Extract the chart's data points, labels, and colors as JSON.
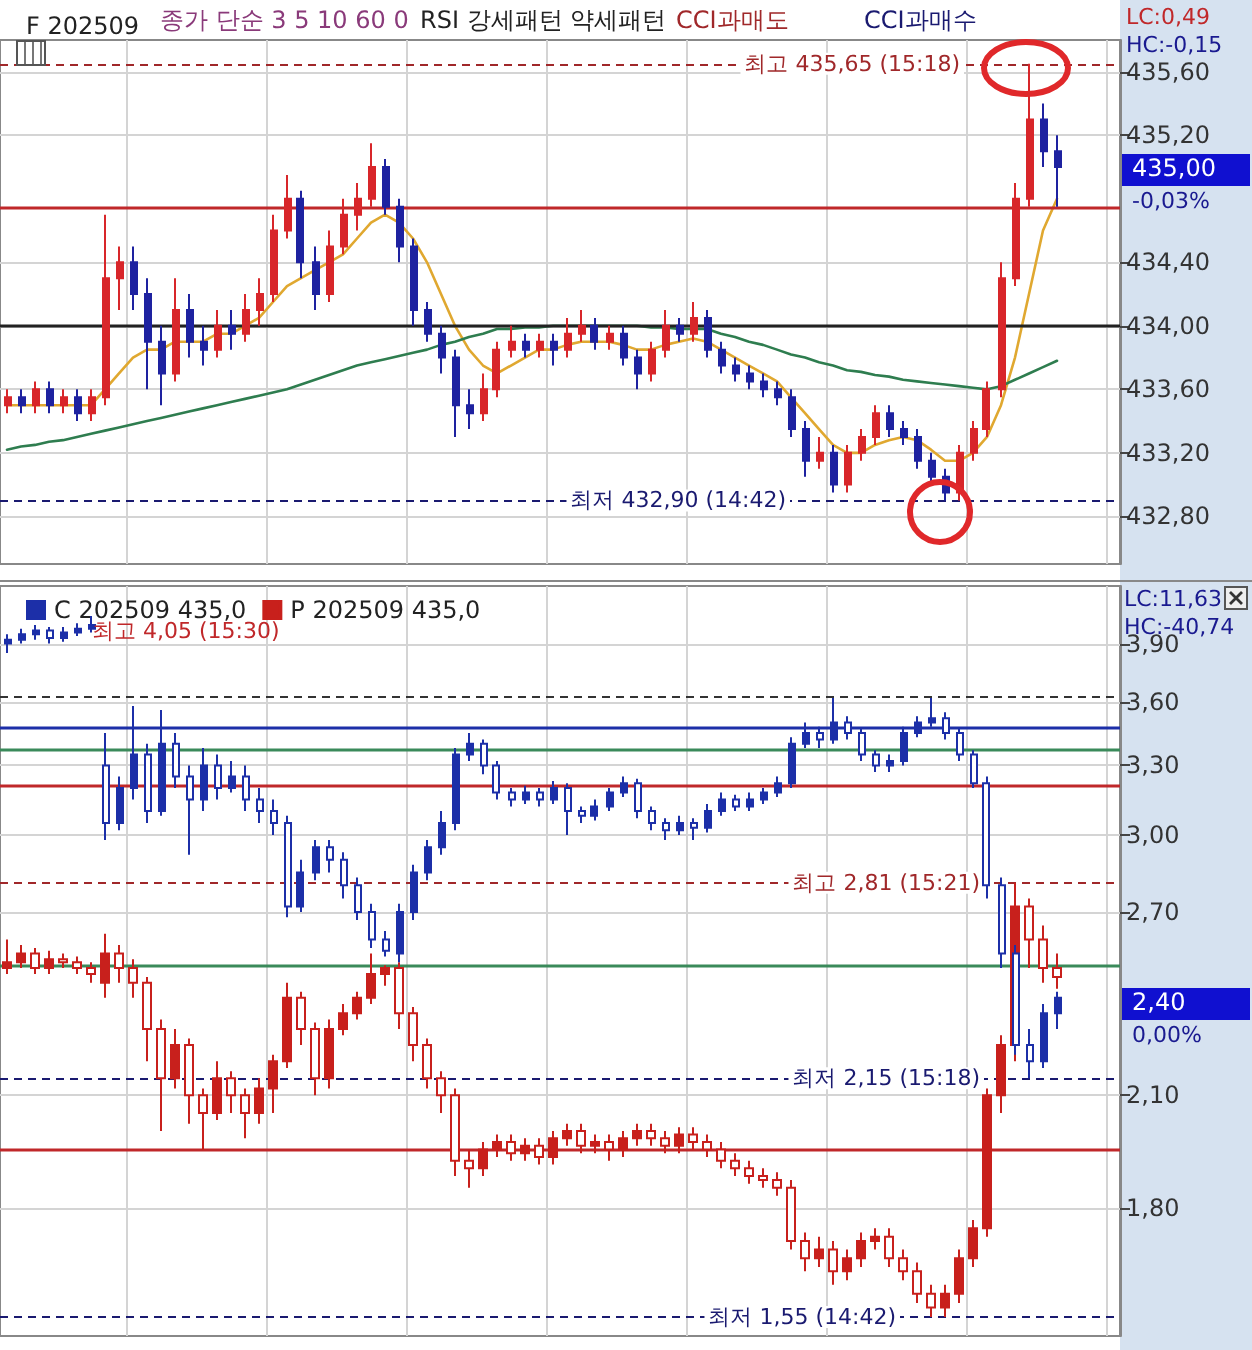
{
  "chart_data": [
    {
      "type": "candlestick",
      "title": "F 202509",
      "annotations": [
        "종가 단순 3 5 10 60 0",
        "RSI 강세패턴 약세패턴",
        "CCI과매도",
        "CCI과매수",
        "LC:0,49",
        "HC:-0,15",
        "435,00",
        "-0,03%"
      ],
      "categories": [
        null,
        null,
        null,
        null,
        null,
        null,
        null,
        null,
        null,
        null,
        null,
        null,
        null,
        null,
        null,
        null,
        null,
        null,
        null,
        null,
        null,
        null,
        null,
        null,
        null,
        null,
        null,
        null,
        null,
        null,
        null,
        null,
        null,
        null,
        null,
        null,
        null,
        null,
        null,
        null,
        null,
        null,
        null,
        null,
        null,
        null,
        null,
        null,
        null,
        null,
        null,
        null,
        null,
        null,
        null,
        null,
        null,
        null,
        null,
        null,
        null,
        null,
        null,
        null,
        null,
        null,
        null,
        null,
        null,
        null,
        null,
        null,
        null,
        null,
        null,
        null,
        null,
        null,
        null,
        null
      ],
      "series": [
        {
          "ohlc": [
            [
              433.5,
              433.6,
              433.45,
              433.55
            ],
            [
              433.55,
              433.6,
              433.45,
              433.5
            ],
            [
              433.5,
              433.65,
              433.45,
              433.6
            ],
            [
              433.6,
              433.65,
              433.45,
              433.5
            ],
            [
              433.5,
              433.6,
              433.45,
              433.55
            ],
            [
              433.55,
              433.6,
              433.4,
              433.45
            ],
            [
              433.45,
              433.6,
              433.4,
              433.55
            ],
            [
              433.55,
              434.7,
              433.5,
              434.3
            ],
            [
              434.3,
              434.5,
              434.1,
              434.4
            ],
            [
              434.4,
              434.5,
              434.1,
              434.2
            ],
            [
              434.2,
              434.3,
              433.6,
              433.9
            ],
            [
              433.9,
              434.0,
              433.5,
              433.7
            ],
            [
              433.7,
              434.3,
              433.65,
              434.1
            ],
            [
              434.1,
              434.2,
              433.8,
              433.9
            ],
            [
              433.9,
              434.0,
              433.75,
              433.85
            ],
            [
              433.85,
              434.1,
              433.8,
              434.0
            ],
            [
              434.0,
              434.1,
              433.85,
              433.95
            ],
            [
              433.95,
              434.2,
              433.9,
              434.1
            ],
            [
              434.1,
              434.3,
              434.0,
              434.2
            ],
            [
              434.2,
              434.7,
              434.15,
              434.6
            ],
            [
              434.6,
              434.95,
              434.55,
              434.8
            ],
            [
              434.8,
              434.85,
              434.3,
              434.4
            ],
            [
              434.4,
              434.5,
              434.1,
              434.2
            ],
            [
              434.2,
              434.6,
              434.15,
              434.5
            ],
            [
              434.5,
              434.8,
              434.45,
              434.7
            ],
            [
              434.7,
              434.9,
              434.6,
              434.8
            ],
            [
              434.8,
              435.15,
              434.75,
              435.0
            ],
            [
              435.0,
              435.05,
              434.7,
              434.75
            ],
            [
              434.75,
              434.8,
              434.4,
              434.5
            ],
            [
              434.5,
              434.55,
              434.0,
              434.1
            ],
            [
              434.1,
              434.15,
              433.9,
              433.95
            ],
            [
              433.95,
              434.0,
              433.7,
              433.8
            ],
            [
              433.8,
              433.85,
              433.3,
              433.5
            ],
            [
              433.5,
              433.6,
              433.35,
              433.45
            ],
            [
              433.45,
              433.7,
              433.4,
              433.6
            ],
            [
              433.6,
              433.9,
              433.55,
              433.85
            ],
            [
              433.85,
              434.0,
              433.8,
              433.9
            ],
            [
              433.9,
              433.95,
              433.8,
              433.85
            ],
            [
              433.85,
              433.95,
              433.8,
              433.9
            ],
            [
              433.9,
              433.95,
              433.75,
              433.85
            ],
            [
              433.85,
              434.05,
              433.8,
              433.95
            ],
            [
              433.95,
              434.1,
              433.9,
              434.0
            ],
            [
              434.0,
              434.05,
              433.85,
              433.9
            ],
            [
              433.9,
              434.0,
              433.85,
              433.95
            ],
            [
              433.95,
              434.0,
              433.75,
              433.8
            ],
            [
              433.8,
              433.85,
              433.6,
              433.7
            ],
            [
              433.7,
              433.9,
              433.65,
              433.85
            ],
            [
              433.85,
              434.1,
              433.8,
              434.0
            ],
            [
              434.0,
              434.05,
              433.9,
              433.95
            ],
            [
              433.95,
              434.15,
              433.9,
              434.05
            ],
            [
              434.05,
              434.1,
              433.8,
              433.85
            ],
            [
              433.85,
              433.9,
              433.7,
              433.75
            ],
            [
              433.75,
              433.8,
              433.65,
              433.7
            ],
            [
              433.7,
              433.75,
              433.6,
              433.65
            ],
            [
              433.65,
              433.7,
              433.55,
              433.6
            ],
            [
              433.6,
              433.65,
              433.5,
              433.55
            ],
            [
              433.55,
              433.6,
              433.3,
              433.35
            ],
            [
              433.35,
              433.4,
              433.05,
              433.15
            ],
            [
              433.15,
              433.3,
              433.1,
              433.2
            ],
            [
              433.2,
              433.25,
              432.95,
              433.0
            ],
            [
              433.0,
              433.25,
              432.95,
              433.2
            ],
            [
              433.2,
              433.35,
              433.15,
              433.3
            ],
            [
              433.3,
              433.5,
              433.25,
              433.45
            ],
            [
              433.45,
              433.5,
              433.3,
              433.35
            ],
            [
              433.35,
              433.4,
              433.25,
              433.3
            ],
            [
              433.3,
              433.35,
              433.1,
              433.15
            ],
            [
              433.15,
              433.2,
              433.0,
              433.05
            ],
            [
              433.05,
              433.1,
              432.9,
              432.95
            ],
            [
              432.95,
              433.25,
              432.9,
              433.2
            ],
            [
              433.2,
              433.4,
              433.15,
              433.35
            ],
            [
              433.35,
              433.65,
              433.3,
              433.6
            ],
            [
              433.6,
              434.4,
              433.55,
              434.3
            ],
            [
              434.3,
              434.9,
              434.25,
              434.8
            ],
            [
              434.8,
              435.65,
              434.75,
              435.3
            ],
            [
              435.3,
              435.4,
              435.0,
              435.1
            ],
            [
              435.1,
              435.2,
              434.75,
              435.0
            ],
            null,
            null,
            null,
            null
          ],
          "colors": [
            "#d8262a",
            "#1e22a0",
            "#d8262a",
            "#1e22a0",
            "#d8262a",
            "#1e22a0",
            "#d8262a",
            "#d8262a",
            "#d8262a",
            "#1e22a0",
            "#1e22a0",
            "#1e22a0",
            "#d8262a",
            "#1e22a0",
            "#1e22a0",
            "#d8262a",
            "#1e22a0",
            "#d8262a",
            "#d8262a",
            "#d8262a",
            "#d8262a",
            "#1e22a0",
            "#1e22a0",
            "#d8262a",
            "#d8262a",
            "#d8262a",
            "#d8262a",
            "#1e22a0",
            "#1e22a0",
            "#1e22a0",
            "#1e22a0",
            "#1e22a0",
            "#1e22a0",
            "#1e22a0",
            "#d8262a",
            "#d8262a",
            "#d8262a",
            "#1e22a0",
            "#d8262a",
            "#1e22a0",
            "#d8262a",
            "#d8262a",
            "#1e22a0",
            "#d8262a",
            "#1e22a0",
            "#1e22a0",
            "#d8262a",
            "#d8262a",
            "#1e22a0",
            "#d8262a",
            "#1e22a0",
            "#1e22a0",
            "#1e22a0",
            "#1e22a0",
            "#1e22a0",
            "#1e22a0",
            "#1e22a0",
            "#1e22a0",
            "#d8262a",
            "#1e22a0",
            "#d8262a",
            "#d8262a",
            "#d8262a",
            "#1e22a0",
            "#1e22a0",
            "#1e22a0",
            "#1e22a0",
            "#1e22a0",
            "#d8262a",
            "#d8262a",
            "#d8262a",
            "#d8262a",
            "#d8262a",
            "#d8262a",
            "#1e22a0",
            "#1e22a0",
            null,
            null,
            null,
            null
          ]
        },
        {
          "type": "line",
          "color": "#e0a830",
          "values": [
            433.5,
            433.5,
            433.5,
            433.5,
            433.5,
            433.5,
            433.5,
            433.6,
            433.7,
            433.8,
            433.85,
            433.85,
            433.9,
            433.9,
            433.9,
            433.95,
            433.95,
            434.0,
            434.05,
            434.15,
            434.25,
            434.3,
            434.35,
            434.4,
            434.45,
            434.55,
            434.65,
            434.7,
            434.65,
            434.55,
            434.4,
            434.2,
            434.0,
            433.85,
            433.75,
            433.7,
            433.75,
            433.8,
            433.85,
            433.85,
            433.88,
            433.9,
            433.9,
            433.9,
            433.88,
            433.85,
            433.85,
            433.88,
            433.9,
            433.92,
            433.9,
            433.85,
            433.8,
            433.75,
            433.7,
            433.65,
            433.55,
            433.45,
            433.35,
            433.25,
            433.2,
            433.2,
            433.25,
            433.28,
            433.3,
            433.28,
            433.22,
            433.15,
            433.15,
            433.2,
            433.3,
            433.5,
            433.8,
            434.2,
            434.6,
            434.8,
            null,
            null,
            null,
            null
          ]
        },
        {
          "type": "line",
          "color": "#2e7d4f",
          "values": [
            433.22,
            433.24,
            433.25,
            433.27,
            433.28,
            433.3,
            433.32,
            433.34,
            433.36,
            433.38,
            433.4,
            433.42,
            433.44,
            433.46,
            433.48,
            433.5,
            433.52,
            433.54,
            433.56,
            433.58,
            433.6,
            433.63,
            433.66,
            433.69,
            433.72,
            433.75,
            433.77,
            433.79,
            433.81,
            433.83,
            433.85,
            433.88,
            433.9,
            433.93,
            433.95,
            433.98,
            433.98,
            433.99,
            433.99,
            434.0,
            434.0,
            434.0,
            434.0,
            434.0,
            434.0,
            434.0,
            433.99,
            433.99,
            433.98,
            433.98,
            433.98,
            433.95,
            433.93,
            433.9,
            433.88,
            433.85,
            433.82,
            433.8,
            433.77,
            433.75,
            433.72,
            433.71,
            433.69,
            433.68,
            433.66,
            433.65,
            433.64,
            433.63,
            433.62,
            433.61,
            433.6,
            433.62,
            433.66,
            433.7,
            433.74,
            433.78,
            null,
            null,
            null,
            null
          ]
        }
      ],
      "ylim": [
        432.5,
        435.8
      ],
      "yticks": [
        {
          "value": 432.8,
          "label": "432,80"
        },
        {
          "value": 433.2,
          "label": "433,20"
        },
        {
          "value": 433.6,
          "label": "433,60"
        },
        {
          "value": 434.0,
          "label": "434,00"
        },
        {
          "value": 434.4,
          "label": "434,40"
        },
        {
          "value": 435.2,
          "label": "435,20"
        },
        {
          "value": 435.6,
          "label": "435,60"
        }
      ],
      "grid": true,
      "legend": false,
      "marker": "none",
      "ref_lines": [
        {
          "axis": "y",
          "value": 435.65,
          "label": "최고 435,65 (15:18)",
          "color": "#a0282a",
          "line_style": "dashed"
        },
        {
          "axis": "y",
          "value": 434.74,
          "color": "#c0282a",
          "line_style": "solid"
        },
        {
          "axis": "y",
          "value": 434.0,
          "color": "#222222",
          "line_style": "solid"
        },
        {
          "axis": "y",
          "value": 432.9,
          "label": "최저 432,90 (14:42)",
          "color": "#1a1a70",
          "line_style": "dashed"
        }
      ]
    },
    {
      "type": "candlestick",
      "log": "y",
      "annotations": [
        "LC:11,63",
        "HC:-40,74",
        "최고 4,05 (15:30)",
        "2,40",
        "0,00%"
      ],
      "categories": [
        null,
        null,
        null,
        null,
        null,
        null,
        null,
        null,
        null,
        null,
        null,
        null,
        null,
        null,
        null,
        null,
        null,
        null,
        null,
        null,
        null,
        null,
        null,
        null,
        null,
        null,
        null,
        null,
        null,
        null,
        null,
        null,
        null,
        null,
        null,
        null,
        null,
        null,
        null,
        null,
        null,
        null,
        null,
        null,
        null,
        null,
        null,
        null,
        null,
        null,
        null,
        null,
        null,
        null,
        null,
        null,
        null,
        null,
        null,
        null,
        null,
        null,
        null,
        null,
        null,
        null,
        null,
        null,
        null,
        null,
        null,
        null,
        null,
        null,
        null,
        null,
        null,
        null,
        null,
        null
      ],
      "series": [
        {
          "name": "C 202509 435,0",
          "color": "#1c2fa8",
          "ohlc": [
            [
              3.9,
              3.95,
              3.85,
              3.92
            ],
            [
              3.92,
              3.98,
              3.9,
              3.95
            ],
            [
              3.95,
              4.0,
              3.92,
              3.97
            ],
            [
              3.97,
              3.99,
              3.9,
              3.93
            ],
            [
              3.93,
              3.99,
              3.91,
              3.96
            ],
            [
              3.96,
              4.01,
              3.94,
              3.98
            ],
            [
              3.98,
              4.05,
              3.96,
              4.0
            ],
            [
              3.3,
              3.45,
              2.98,
              3.05
            ],
            [
              3.05,
              3.25,
              3.02,
              3.2
            ],
            [
              3.2,
              3.58,
              3.15,
              3.35
            ],
            [
              3.35,
              3.4,
              3.05,
              3.1
            ],
            [
              3.1,
              3.56,
              3.08,
              3.4
            ],
            [
              3.4,
              3.45,
              3.2,
              3.25
            ],
            [
              3.25,
              3.3,
              2.92,
              3.15
            ],
            [
              3.15,
              3.38,
              3.1,
              3.3
            ],
            [
              3.3,
              3.35,
              3.15,
              3.2
            ],
            [
              3.2,
              3.32,
              3.18,
              3.25
            ],
            [
              3.25,
              3.3,
              3.1,
              3.15
            ],
            [
              3.15,
              3.2,
              3.05,
              3.1
            ],
            [
              3.1,
              3.15,
              3.0,
              3.05
            ],
            [
              3.05,
              3.08,
              2.68,
              2.72
            ],
            [
              2.72,
              2.9,
              2.7,
              2.85
            ],
            [
              2.85,
              2.98,
              2.82,
              2.95
            ],
            [
              2.95,
              2.98,
              2.85,
              2.9
            ],
            [
              2.9,
              2.93,
              2.75,
              2.8
            ],
            [
              2.8,
              2.83,
              2.67,
              2.7
            ],
            [
              2.7,
              2.73,
              2.57,
              2.6
            ],
            [
              2.6,
              2.63,
              2.54,
              2.56
            ],
            [
              2.55,
              2.73,
              2.52,
              2.7
            ],
            [
              2.7,
              2.88,
              2.67,
              2.85
            ],
            [
              2.85,
              2.98,
              2.82,
              2.95
            ],
            [
              2.95,
              3.1,
              2.92,
              3.05
            ],
            [
              3.05,
              3.38,
              3.02,
              3.35
            ],
            [
              3.35,
              3.45,
              3.32,
              3.4
            ],
            [
              3.4,
              3.42,
              3.26,
              3.3
            ],
            [
              3.3,
              3.32,
              3.15,
              3.18
            ],
            [
              3.18,
              3.2,
              3.12,
              3.15
            ],
            [
              3.15,
              3.21,
              3.13,
              3.18
            ],
            [
              3.18,
              3.2,
              3.12,
              3.15
            ],
            [
              3.15,
              3.23,
              3.13,
              3.2
            ],
            [
              3.2,
              3.22,
              3.0,
              3.1
            ],
            [
              3.1,
              3.12,
              3.05,
              3.08
            ],
            [
              3.08,
              3.15,
              3.06,
              3.12
            ],
            [
              3.12,
              3.2,
              3.1,
              3.18
            ],
            [
              3.18,
              3.25,
              3.16,
              3.22
            ],
            [
              3.22,
              3.24,
              3.07,
              3.1
            ],
            [
              3.1,
              3.12,
              3.02,
              3.05
            ],
            [
              3.05,
              3.07,
              2.98,
              3.02
            ],
            [
              3.02,
              3.08,
              3.0,
              3.05
            ],
            [
              3.05,
              3.07,
              2.98,
              3.03
            ],
            [
              3.03,
              3.13,
              3.01,
              3.1
            ],
            [
              3.1,
              3.18,
              3.08,
              3.15
            ],
            [
              3.15,
              3.17,
              3.1,
              3.12
            ],
            [
              3.12,
              3.18,
              3.1,
              3.15
            ],
            [
              3.15,
              3.2,
              3.13,
              3.18
            ],
            [
              3.18,
              3.25,
              3.16,
              3.22
            ],
            [
              3.22,
              3.43,
              3.2,
              3.4
            ],
            [
              3.4,
              3.5,
              3.38,
              3.45
            ],
            [
              3.45,
              3.48,
              3.38,
              3.42
            ],
            [
              3.42,
              3.62,
              3.4,
              3.5
            ],
            [
              3.5,
              3.53,
              3.42,
              3.45
            ],
            [
              3.45,
              3.47,
              3.32,
              3.35
            ],
            [
              3.35,
              3.37,
              3.27,
              3.3
            ],
            [
              3.3,
              3.35,
              3.27,
              3.32
            ],
            [
              3.32,
              3.48,
              3.3,
              3.45
            ],
            [
              3.45,
              3.53,
              3.43,
              3.5
            ],
            [
              3.5,
              3.62,
              3.48,
              3.52
            ],
            [
              3.52,
              3.55,
              3.42,
              3.45
            ],
            [
              3.45,
              3.47,
              3.32,
              3.35
            ],
            [
              3.35,
              3.37,
              3.2,
              3.22
            ],
            [
              3.22,
              3.25,
              2.75,
              2.8
            ],
            [
              2.8,
              2.83,
              2.5,
              2.55
            ],
            [
              2.55,
              2.58,
              2.22,
              2.25
            ],
            [
              2.25,
              2.3,
              2.15,
              2.2
            ],
            [
              2.2,
              2.38,
              2.18,
              2.35
            ],
            [
              2.35,
              2.42,
              2.3,
              2.4
            ],
            null,
            null,
            null,
            null
          ]
        },
        {
          "name": "P 202509 435,0",
          "color": "#c8201c",
          "ohlc": [
            [
              2.5,
              2.6,
              2.48,
              2.52
            ],
            [
              2.52,
              2.58,
              2.5,
              2.55
            ],
            [
              2.55,
              2.57,
              2.48,
              2.5
            ],
            [
              2.5,
              2.56,
              2.48,
              2.53
            ],
            [
              2.53,
              2.55,
              2.5,
              2.52
            ],
            [
              2.52,
              2.54,
              2.48,
              2.5
            ],
            [
              2.5,
              2.52,
              2.45,
              2.48
            ],
            [
              2.45,
              2.62,
              2.4,
              2.55
            ],
            [
              2.55,
              2.58,
              2.45,
              2.5
            ],
            [
              2.5,
              2.53,
              2.4,
              2.45
            ],
            [
              2.45,
              2.47,
              2.2,
              2.3
            ],
            [
              2.3,
              2.33,
              2.0,
              2.15
            ],
            [
              2.15,
              2.3,
              2.12,
              2.25
            ],
            [
              2.25,
              2.27,
              2.02,
              2.1
            ],
            [
              2.1,
              2.12,
              1.95,
              2.05
            ],
            [
              2.05,
              2.2,
              2.03,
              2.15
            ],
            [
              2.15,
              2.17,
              2.05,
              2.1
            ],
            [
              2.1,
              2.12,
              1.98,
              2.05
            ],
            [
              2.05,
              2.15,
              2.02,
              2.12
            ],
            [
              2.12,
              2.22,
              2.05,
              2.2
            ],
            [
              2.2,
              2.45,
              2.18,
              2.4
            ],
            [
              2.4,
              2.42,
              2.25,
              2.3
            ],
            [
              2.3,
              2.32,
              2.1,
              2.15
            ],
            [
              2.15,
              2.33,
              2.12,
              2.3
            ],
            [
              2.3,
              2.38,
              2.28,
              2.35
            ],
            [
              2.35,
              2.42,
              2.33,
              2.4
            ],
            [
              2.4,
              2.55,
              2.38,
              2.48
            ],
            [
              2.48,
              2.51,
              2.44,
              2.5
            ],
            [
              2.5,
              2.52,
              2.3,
              2.35
            ],
            [
              2.35,
              2.37,
              2.2,
              2.25
            ],
            [
              2.25,
              2.27,
              2.12,
              2.15
            ],
            [
              2.15,
              2.17,
              2.05,
              2.1
            ],
            [
              2.1,
              2.12,
              1.88,
              1.92
            ],
            [
              1.92,
              1.95,
              1.85,
              1.9
            ],
            [
              1.9,
              1.97,
              1.88,
              1.95
            ],
            [
              1.95,
              1.99,
              1.93,
              1.97
            ],
            [
              1.97,
              1.99,
              1.92,
              1.94
            ],
            [
              1.94,
              1.98,
              1.92,
              1.96
            ],
            [
              1.96,
              1.98,
              1.91,
              1.93
            ],
            [
              1.93,
              2.0,
              1.91,
              1.98
            ],
            [
              1.98,
              2.02,
              1.96,
              2.0
            ],
            [
              2.0,
              2.02,
              1.94,
              1.96
            ],
            [
              1.96,
              1.99,
              1.94,
              1.97
            ],
            [
              1.97,
              1.99,
              1.92,
              1.95
            ],
            [
              1.95,
              2.0,
              1.93,
              1.98
            ],
            [
              1.98,
              2.02,
              1.96,
              2.0
            ],
            [
              2.0,
              2.02,
              1.96,
              1.98
            ],
            [
              1.98,
              2.0,
              1.94,
              1.96
            ],
            [
              1.96,
              2.01,
              1.94,
              1.99
            ],
            [
              1.99,
              2.01,
              1.95,
              1.97
            ],
            [
              1.97,
              1.99,
              1.93,
              1.95
            ],
            [
              1.95,
              1.97,
              1.9,
              1.92
            ],
            [
              1.92,
              1.94,
              1.88,
              1.9
            ],
            [
              1.9,
              1.92,
              1.86,
              1.88
            ],
            [
              1.88,
              1.9,
              1.85,
              1.87
            ],
            [
              1.87,
              1.89,
              1.83,
              1.85
            ],
            [
              1.85,
              1.87,
              1.7,
              1.72
            ],
            [
              1.72,
              1.74,
              1.65,
              1.68
            ],
            [
              1.68,
              1.73,
              1.66,
              1.7
            ],
            [
              1.7,
              1.72,
              1.62,
              1.65
            ],
            [
              1.65,
              1.7,
              1.63,
              1.68
            ],
            [
              1.68,
              1.74,
              1.66,
              1.72
            ],
            [
              1.72,
              1.75,
              1.7,
              1.73
            ],
            [
              1.73,
              1.75,
              1.66,
              1.68
            ],
            [
              1.68,
              1.7,
              1.63,
              1.65
            ],
            [
              1.65,
              1.67,
              1.58,
              1.6
            ],
            [
              1.6,
              1.62,
              1.55,
              1.57
            ],
            [
              1.57,
              1.62,
              1.55,
              1.6
            ],
            [
              1.6,
              1.7,
              1.58,
              1.68
            ],
            [
              1.68,
              1.77,
              1.66,
              1.75
            ],
            [
              1.75,
              2.12,
              1.73,
              2.1
            ],
            [
              2.1,
              2.28,
              2.05,
              2.25
            ],
            [
              2.25,
              2.81,
              2.2,
              2.72
            ],
            [
              2.72,
              2.75,
              2.5,
              2.6
            ],
            [
              2.6,
              2.65,
              2.45,
              2.5
            ],
            [
              2.5,
              2.55,
              2.43,
              2.47
            ],
            null,
            null,
            null,
            null
          ]
        }
      ],
      "ylim": [
        1.51,
        4.22
      ],
      "yticks": [
        {
          "value": 1.8,
          "label": "1,80"
        },
        {
          "value": 2.1,
          "label": "2,10"
        },
        {
          "value": 2.7,
          "label": "2,70"
        },
        {
          "value": 3.0,
          "label": "3,00"
        },
        {
          "value": 3.3,
          "label": "3,30"
        },
        {
          "value": 3.6,
          "label": "3,60"
        },
        {
          "value": 3.9,
          "label": "3,90"
        }
      ],
      "grid": true,
      "legend": "top left",
      "ref_lines": [
        {
          "axis": "y",
          "value": 3.63,
          "color": "#333333",
          "line_style": "dashed"
        },
        {
          "axis": "y",
          "value": 3.48,
          "color": "#1c2fa8",
          "line_style": "solid"
        },
        {
          "axis": "y",
          "value": 3.37,
          "color": "#3a8a5a",
          "line_style": "solid"
        },
        {
          "axis": "y",
          "value": 3.21,
          "color": "#c0282a",
          "line_style": "solid"
        },
        {
          "axis": "y",
          "value": 2.81,
          "label": "최고 2,81 (15:21)",
          "color": "#a0282a",
          "line_style": "dashed"
        },
        {
          "axis": "y",
          "value": 2.51,
          "color": "#3a8a5a",
          "line_style": "solid"
        },
        {
          "axis": "y",
          "value": 2.15,
          "label": "최저 2,15 (15:18)",
          "color": "#1a1a70",
          "line_style": "dashed"
        },
        {
          "axis": "y",
          "value": 1.95,
          "color": "#c0282a",
          "line_style": "solid"
        },
        {
          "axis": "y",
          "value": 1.55,
          "label": "최저 1,55 (14:42)",
          "color": "#1a1a70",
          "line_style": "dashed"
        }
      ]
    }
  ]
}
